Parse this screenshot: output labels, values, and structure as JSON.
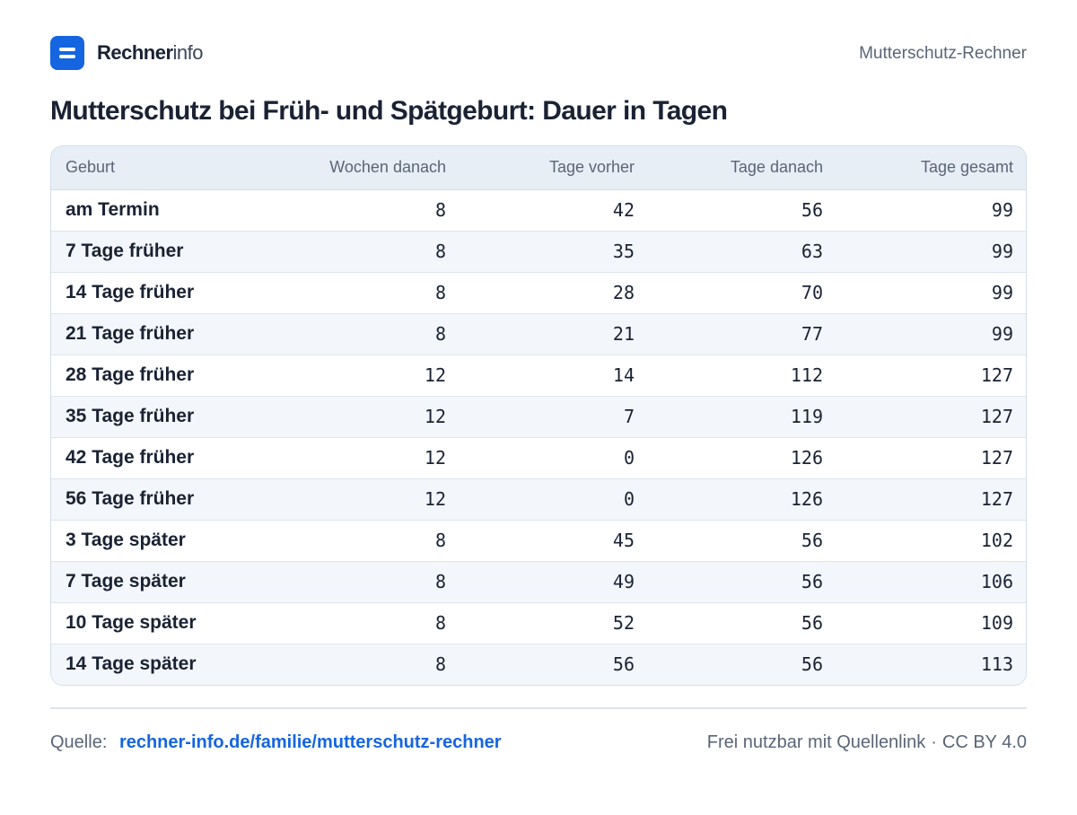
{
  "header": {
    "logo_bold": "Rechner",
    "logo_light": "info",
    "right_label": "Mutterschutz-Rechner"
  },
  "chart_data": {
    "type": "table",
    "title": "Mutterschutz bei Früh- und Spätgeburt: Dauer in Tagen",
    "columns": [
      "Geburt",
      "Wochen danach",
      "Tage vorher",
      "Tage danach",
      "Tage gesamt"
    ],
    "rows": [
      [
        "am Termin",
        "8",
        "42",
        "56",
        "99"
      ],
      [
        "7 Tage früher",
        "8",
        "35",
        "63",
        "99"
      ],
      [
        "14 Tage früher",
        "8",
        "28",
        "70",
        "99"
      ],
      [
        "21 Tage früher",
        "8",
        "21",
        "77",
        "99"
      ],
      [
        "28 Tage früher",
        "12",
        "14",
        "112",
        "127"
      ],
      [
        "35 Tage früher",
        "12",
        "7",
        "119",
        "127"
      ],
      [
        "42 Tage früher",
        "12",
        "0",
        "126",
        "127"
      ],
      [
        "56 Tage früher",
        "12",
        "0",
        "126",
        "127"
      ],
      [
        "3 Tage später",
        "8",
        "45",
        "56",
        "102"
      ],
      [
        "7 Tage später",
        "8",
        "49",
        "56",
        "106"
      ],
      [
        "10 Tage später",
        "8",
        "52",
        "56",
        "109"
      ],
      [
        "14 Tage später",
        "8",
        "56",
        "56",
        "113"
      ]
    ]
  },
  "footer": {
    "source_label": "Quelle:",
    "source_link": "rechner-info.de/familie/mutterschutz-rechner",
    "license_text": "Frei nutzbar mit Quellenlink",
    "separator": "·",
    "license_name": "CC BY 4.0"
  },
  "colors": {
    "brand": "#1565e0",
    "header_row": "#e8eef6",
    "zebra_row": "#f3f6fa"
  }
}
